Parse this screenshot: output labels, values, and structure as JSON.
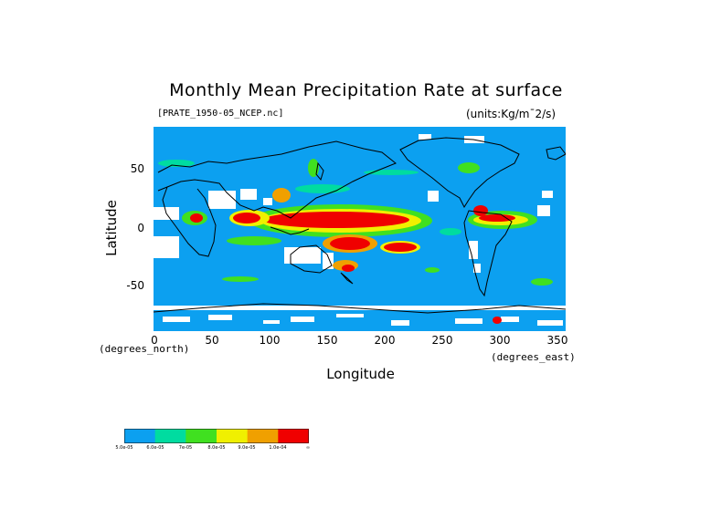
{
  "chart_data": {
    "type": "heatmap",
    "title": "Monthly Mean Precipitation Rate at surface",
    "file_label": "[PRATE_1950-05_NCEP.nc]",
    "units_label": "(units:Kg/m¯2/s)",
    "xlabel": "Longitude",
    "ylabel": "Latitude",
    "x_unit_label": "(degrees_east)",
    "y_unit_label": "(degrees_north)",
    "xlim": [
      0,
      357.5
    ],
    "ylim": [
      -88.5,
      88.5
    ],
    "x_ticks": [
      "0",
      "50",
      "100",
      "150",
      "200",
      "250",
      "300",
      "350"
    ],
    "y_ticks": [
      "50",
      "0",
      "-50"
    ],
    "grid": false,
    "legend_placement": "bottom-left",
    "colorbar": {
      "colors": [
        "#0ca0f0",
        "#00dca0",
        "#40e020",
        "#f0f000",
        "#f0a000",
        "#f00000"
      ],
      "labels": [
        "5.0e-05",
        "6.0e-05",
        "7e-05",
        "8.0e-05",
        "9.0e-05",
        "1.0e-04",
        "∞"
      ]
    },
    "background_color": "#0ca0f0",
    "missing_color": "#ffffff",
    "coastline_color": "#000000"
  }
}
